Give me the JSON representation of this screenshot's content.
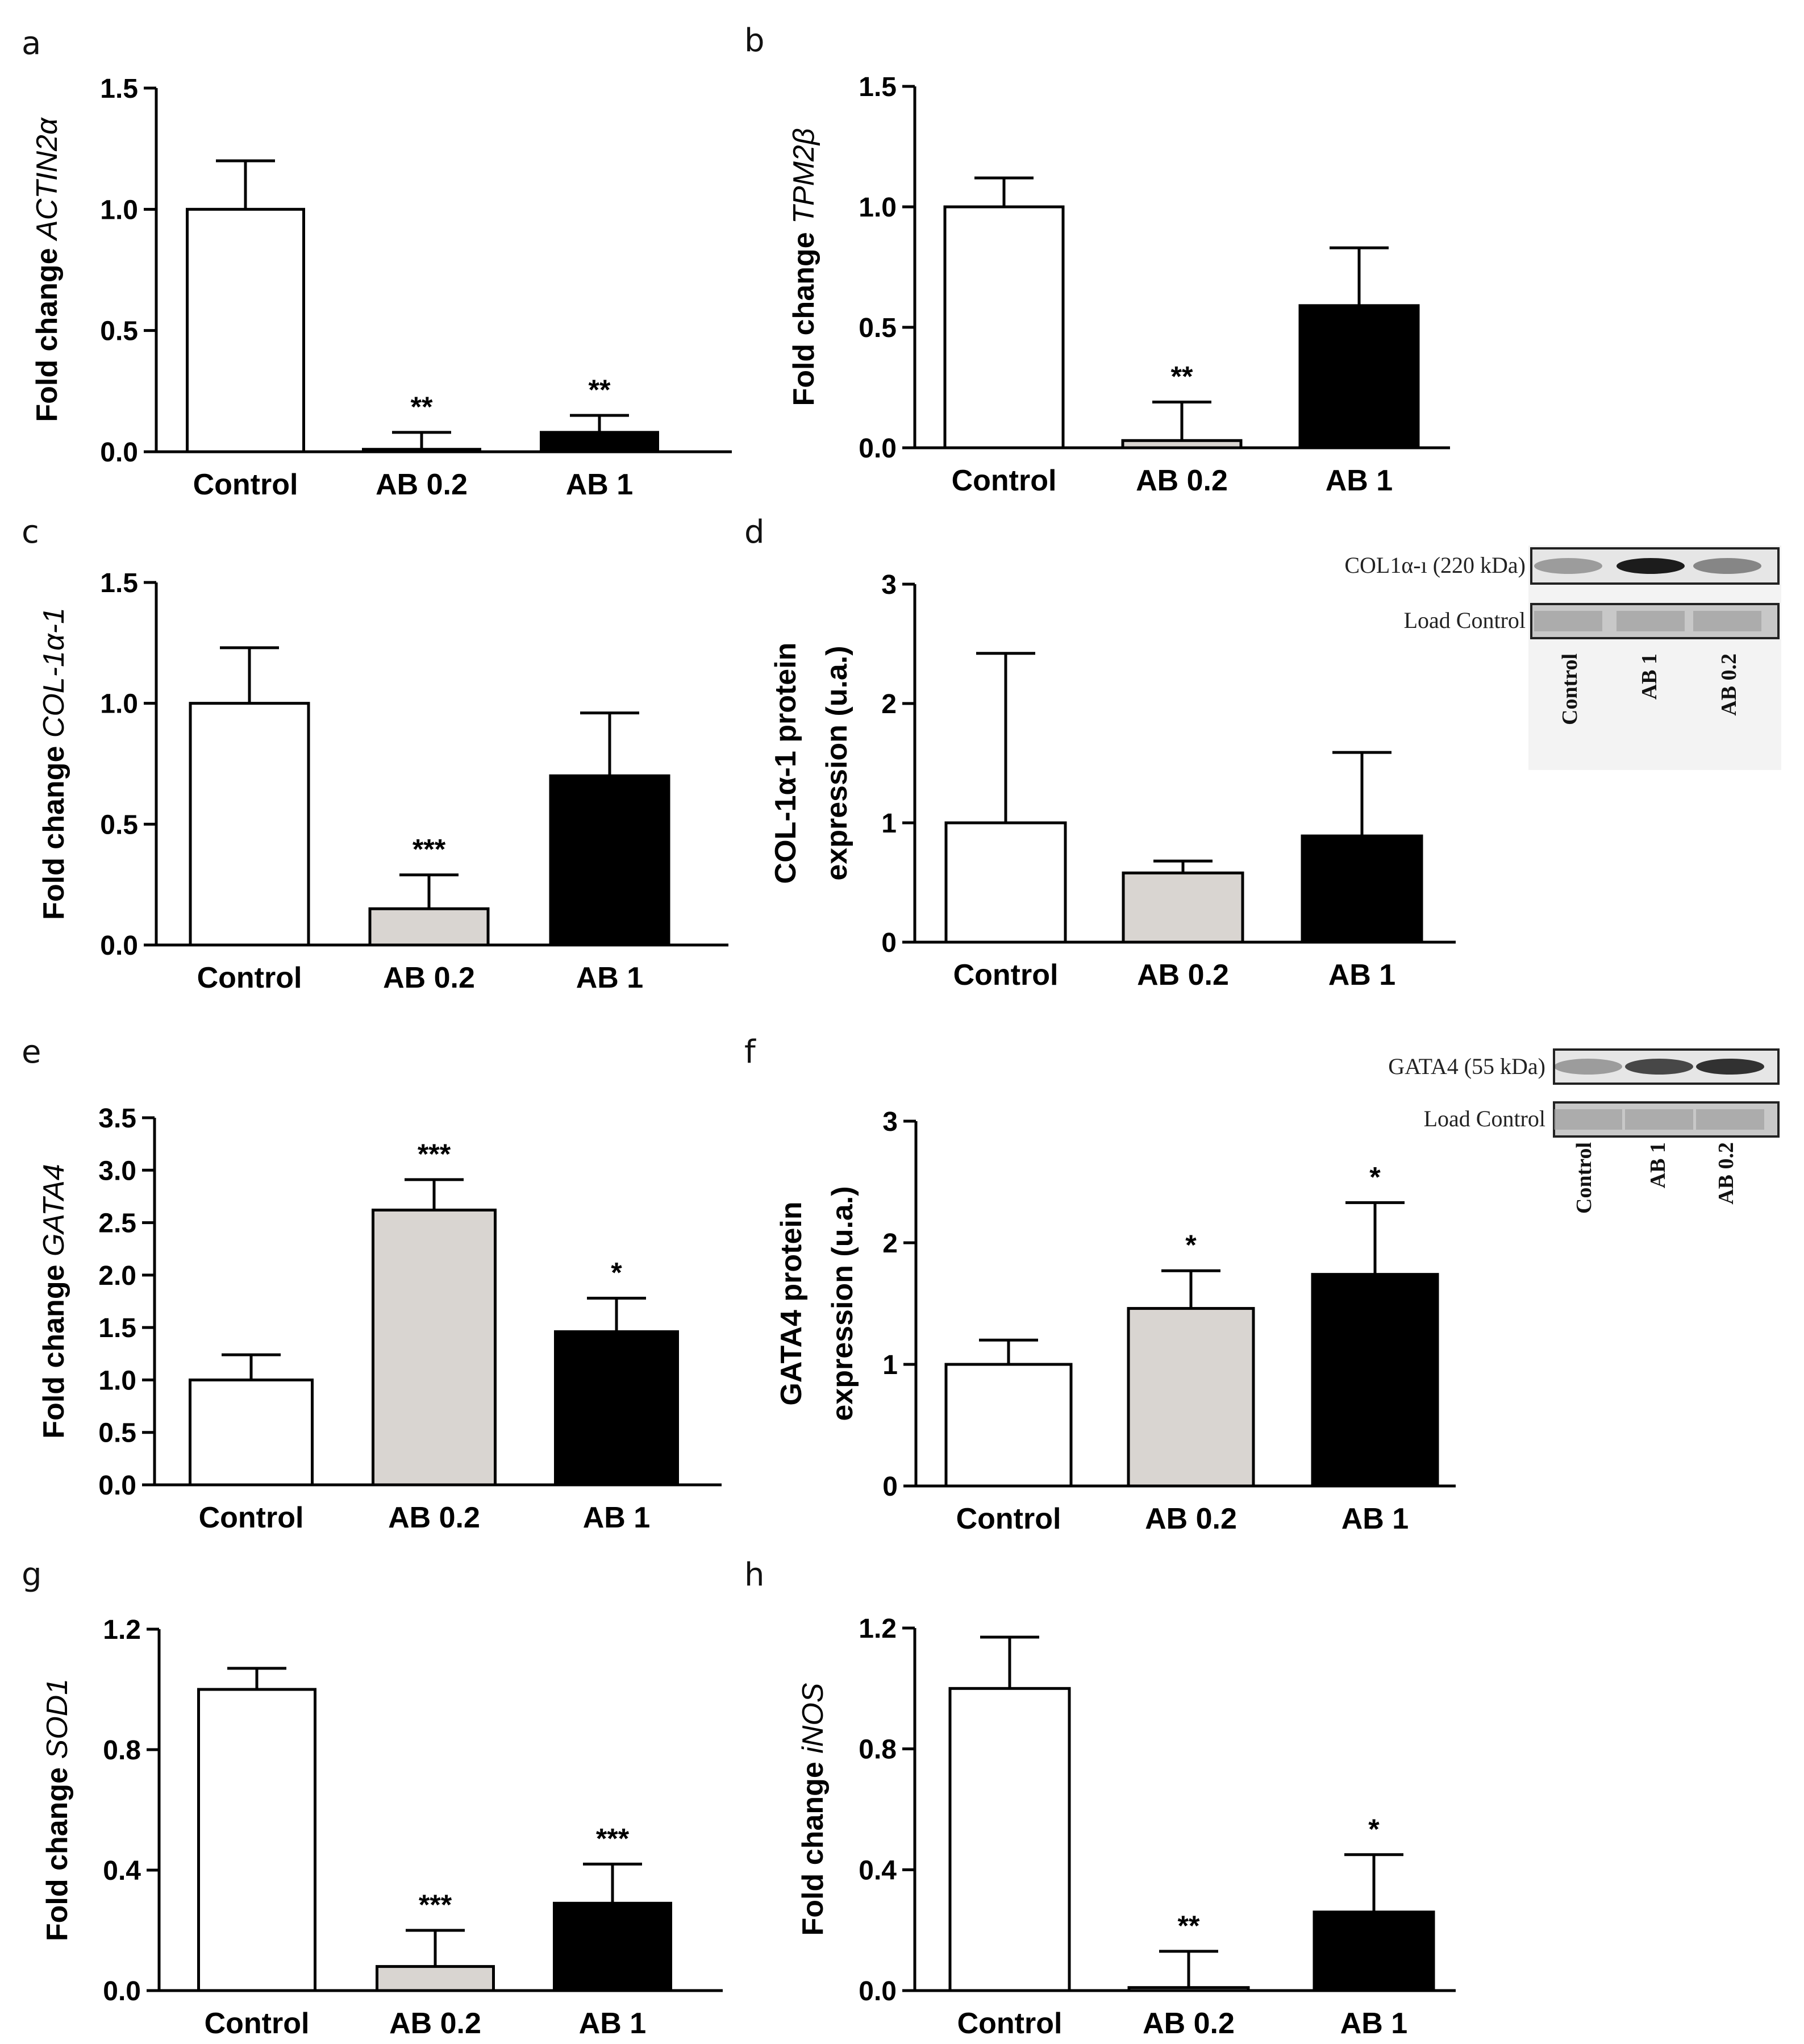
{
  "chart_data": [
    {
      "panel": "a",
      "type": "bar",
      "ylabel_prefix": "Fold change ",
      "ylabel_gene": "ACTIN2α",
      "ylabel_lines": [],
      "ylim": [
        0,
        1.5
      ],
      "yticks": [
        "0.0",
        "0.5",
        "1.0",
        "1.5"
      ],
      "categories": [
        "Control",
        "AB 0.2",
        "AB 1"
      ],
      "values": [
        1.0,
        0.01,
        0.08
      ],
      "errors": [
        0.2,
        0.07,
        0.07
      ],
      "colors": [
        "#ffffff",
        "#d9d5d1",
        "#000000"
      ],
      "significance": [
        "",
        "**",
        "**"
      ]
    },
    {
      "panel": "b",
      "type": "bar",
      "ylabel_prefix": "Fold change ",
      "ylabel_gene": "TPM2β",
      "ylabel_lines": [],
      "ylim": [
        0,
        1.5
      ],
      "yticks": [
        "0.0",
        "0.5",
        "1.0",
        "1.5"
      ],
      "categories": [
        "Control",
        "AB 0.2",
        "AB 1"
      ],
      "values": [
        1.0,
        0.03,
        0.59
      ],
      "errors": [
        0.12,
        0.16,
        0.24
      ],
      "colors": [
        "#ffffff",
        "#d9d5d1",
        "#000000"
      ],
      "significance": [
        "",
        "**",
        ""
      ]
    },
    {
      "panel": "c",
      "type": "bar",
      "ylabel_prefix": "Fold change ",
      "ylabel_gene": "COL-1α-1",
      "ylabel_lines": [],
      "ylim": [
        0,
        1.5
      ],
      "yticks": [
        "0.0",
        "0.5",
        "1.0",
        "1.5"
      ],
      "categories": [
        "Control",
        "AB 0.2",
        "AB 1"
      ],
      "values": [
        1.0,
        0.15,
        0.7
      ],
      "errors": [
        0.23,
        0.14,
        0.26
      ],
      "colors": [
        "#ffffff",
        "#d9d5d1",
        "#000000"
      ],
      "significance": [
        "",
        "***",
        ""
      ]
    },
    {
      "panel": "d",
      "type": "bar",
      "ylabel_prefix": "",
      "ylabel_gene": "",
      "ylabel_lines": [
        "COL-1α-1 protein",
        "expression (u.a.)"
      ],
      "ylim": [
        0,
        3
      ],
      "yticks": [
        "0",
        "1",
        "2",
        "3"
      ],
      "categories": [
        "Control",
        "AB 0.2",
        "AB 1"
      ],
      "values": [
        1.0,
        0.58,
        0.89
      ],
      "errors": [
        1.42,
        0.1,
        0.7
      ],
      "colors": [
        "#ffffff",
        "#d9d5d1",
        "#000000"
      ],
      "significance": [
        "",
        "",
        ""
      ],
      "blot": {
        "band_label": "COL1α-ı (220 kDa)",
        "load_label": "Load Control",
        "lanes": [
          "Control",
          "AB 1",
          "AB 0.2"
        ]
      }
    },
    {
      "panel": "e",
      "type": "bar",
      "ylabel_prefix": "Fold change ",
      "ylabel_gene": "GATA4",
      "ylabel_lines": [],
      "ylim": [
        0,
        3.5
      ],
      "yticks": [
        "0.0",
        "0.5",
        "1.0",
        "1.5",
        "2.0",
        "2.5",
        "3.0",
        "3.5"
      ],
      "categories": [
        "Control",
        "AB 0.2",
        "AB 1"
      ],
      "values": [
        1.0,
        2.62,
        1.46
      ],
      "errors": [
        0.24,
        0.29,
        0.32
      ],
      "colors": [
        "#ffffff",
        "#d9d5d1",
        "#000000"
      ],
      "significance": [
        "",
        "***",
        "*"
      ]
    },
    {
      "panel": "f",
      "type": "bar",
      "ylabel_prefix": "",
      "ylabel_gene": "",
      "ylabel_lines": [
        "GATA4 protein",
        "expression (u.a.)"
      ],
      "ylim": [
        0,
        3
      ],
      "yticks": [
        "0",
        "1",
        "2",
        "3"
      ],
      "categories": [
        "Control",
        "AB 0.2",
        "AB 1"
      ],
      "values": [
        1.0,
        1.46,
        1.74
      ],
      "errors": [
        0.2,
        0.31,
        0.59
      ],
      "colors": [
        "#ffffff",
        "#d9d5d1",
        "#000000"
      ],
      "significance": [
        "",
        "*",
        "*"
      ],
      "blot": {
        "band_label": "GATA4 (55 kDa)",
        "load_label": "Load Control",
        "lanes": [
          "Control",
          "AB 1",
          "AB 0.2"
        ]
      }
    },
    {
      "panel": "g",
      "type": "bar",
      "ylabel_prefix": "Fold change ",
      "ylabel_gene": "SOD1",
      "ylabel_lines": [],
      "ylim": [
        0,
        1.2
      ],
      "yticks": [
        "0.0",
        "0.4",
        "0.8",
        "1.2"
      ],
      "categories": [
        "Control",
        "AB 0.2",
        "AB 1"
      ],
      "values": [
        1.0,
        0.08,
        0.29
      ],
      "errors": [
        0.07,
        0.12,
        0.13
      ],
      "colors": [
        "#ffffff",
        "#d9d5d1",
        "#000000"
      ],
      "significance": [
        "",
        "***",
        "***"
      ]
    },
    {
      "panel": "h",
      "type": "bar",
      "ylabel_prefix": "Fold change ",
      "ylabel_gene": "iNOS",
      "ylabel_lines": [],
      "ylim": [
        0,
        1.2
      ],
      "yticks": [
        "0.0",
        "0.4",
        "0.8",
        "1.2"
      ],
      "categories": [
        "Control",
        "AB 0.2",
        "AB 1"
      ],
      "values": [
        1.0,
        0.01,
        0.26
      ],
      "errors": [
        0.17,
        0.12,
        0.19
      ],
      "colors": [
        "#ffffff",
        "#ffffff",
        "#000000"
      ],
      "significance": [
        "",
        "**",
        "*"
      ]
    }
  ]
}
